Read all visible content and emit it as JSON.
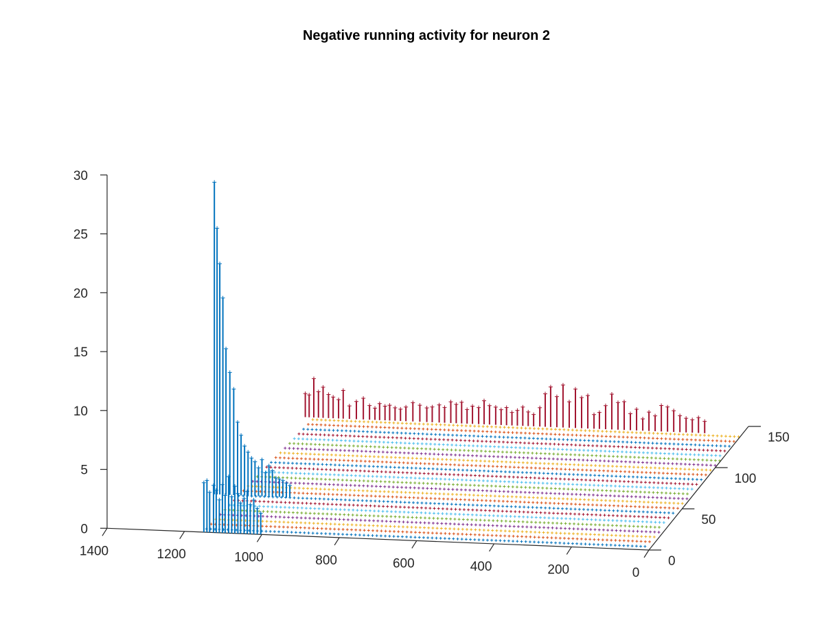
{
  "chart_data": {
    "type": "stem3",
    "title": "Negative running activity for neuron 2",
    "xlabel": "",
    "ylabel": "",
    "zlabel": "",
    "x_range": [
      0,
      1400
    ],
    "y_range": [
      0,
      150
    ],
    "z_range": [
      0,
      30
    ],
    "x_ticks": [
      "0",
      "200",
      "400",
      "600",
      "800",
      "1000",
      "1200",
      "1400"
    ],
    "y_ticks": [
      "0",
      "50",
      "100",
      "150"
    ],
    "z_ticks": [
      "0",
      "5",
      "10",
      "15",
      "20",
      "25",
      "30"
    ],
    "grid": false,
    "colors": [
      "#0072BD",
      "#D95319",
      "#EDB120",
      "#7E2F8E",
      "#77AC30",
      "#4DBEEE",
      "#A2142F"
    ],
    "series": [
      {
        "color": "#0072BD",
        "y": 0,
        "points": [
          {
            "x": 1150,
            "z": 4.2
          },
          {
            "x": 1142,
            "z": 4.4
          },
          {
            "x": 1135,
            "z": 3.4
          },
          {
            "x": 1125,
            "z": 4.0
          },
          {
            "x": 1118,
            "z": 3.6
          },
          {
            "x": 1110,
            "z": 2.8
          },
          {
            "x": 1102,
            "z": 4.1
          },
          {
            "x": 1095,
            "z": 3.2
          },
          {
            "x": 1086,
            "z": 4.8
          },
          {
            "x": 1078,
            "z": 3.1
          },
          {
            "x": 1070,
            "z": 4.0
          },
          {
            "x": 1062,
            "z": 3.4
          },
          {
            "x": 1055,
            "z": 2.6
          },
          {
            "x": 1046,
            "z": 3.0
          },
          {
            "x": 1038,
            "z": 3.6
          },
          {
            "x": 1030,
            "z": 2.5
          },
          {
            "x": 1021,
            "z": 2.9
          },
          {
            "x": 1012,
            "z": 2.2
          },
          {
            "x": 1003,
            "z": 1.8
          }
        ]
      },
      {
        "color": "#0072BD",
        "y": 45,
        "points": [
          {
            "x": 1200,
            "z": 26.5
          },
          {
            "x": 1193,
            "z": 22.6
          },
          {
            "x": 1186,
            "z": 19.6
          },
          {
            "x": 1178,
            "z": 16.7
          },
          {
            "x": 1170,
            "z": 12.4
          },
          {
            "x": 1160,
            "z": 10.4
          },
          {
            "x": 1150,
            "z": 9.0
          },
          {
            "x": 1140,
            "z": 6.2
          },
          {
            "x": 1131,
            "z": 5.1
          },
          {
            "x": 1122,
            "z": 4.2
          },
          {
            "x": 1113,
            "z": 3.7
          },
          {
            "x": 1104,
            "z": 3.2
          },
          {
            "x": 1095,
            "z": 2.9
          },
          {
            "x": 1086,
            "z": 2.4
          },
          {
            "x": 1077,
            "z": 3.1
          },
          {
            "x": 1068,
            "z": 2.0
          },
          {
            "x": 1059,
            "z": 2.6
          },
          {
            "x": 1050,
            "z": 2.2
          },
          {
            "x": 1041,
            "z": 1.6
          },
          {
            "x": 1032,
            "z": 1.5
          },
          {
            "x": 1023,
            "z": 1.4
          },
          {
            "x": 1014,
            "z": 1.2
          },
          {
            "x": 1005,
            "z": 1.0
          }
        ]
      },
      {
        "color": "#A2142F",
        "y": 140,
        "points": [
          {
            "x": 1128,
            "z": 2.0
          },
          {
            "x": 1118,
            "z": 1.9
          },
          {
            "x": 1106,
            "z": 3.3
          },
          {
            "x": 1094,
            "z": 2.2
          },
          {
            "x": 1082,
            "z": 2.6
          },
          {
            "x": 1068,
            "z": 2.0
          },
          {
            "x": 1056,
            "z": 1.8
          },
          {
            "x": 1042,
            "z": 1.6
          },
          {
            "x": 1030,
            "z": 2.4
          },
          {
            "x": 1014,
            "z": 1.1
          },
          {
            "x": 996,
            "z": 1.5
          },
          {
            "x": 978,
            "z": 1.8
          },
          {
            "x": 962,
            "z": 1.2
          },
          {
            "x": 948,
            "z": 1.0
          },
          {
            "x": 936,
            "z": 1.4
          },
          {
            "x": 922,
            "z": 1.2
          },
          {
            "x": 910,
            "z": 1.3
          },
          {
            "x": 896,
            "z": 1.1
          },
          {
            "x": 882,
            "z": 1.0
          },
          {
            "x": 868,
            "z": 1.2
          },
          {
            "x": 850,
            "z": 1.6
          },
          {
            "x": 832,
            "z": 1.4
          },
          {
            "x": 814,
            "z": 1.2
          },
          {
            "x": 800,
            "z": 1.3
          },
          {
            "x": 782,
            "z": 1.5
          },
          {
            "x": 768,
            "z": 1.3
          },
          {
            "x": 752,
            "z": 1.8
          },
          {
            "x": 738,
            "z": 1.6
          },
          {
            "x": 724,
            "z": 1.8
          },
          {
            "x": 710,
            "z": 1.2
          },
          {
            "x": 696,
            "z": 1.5
          },
          {
            "x": 680,
            "z": 1.4
          },
          {
            "x": 666,
            "z": 2.0
          },
          {
            "x": 652,
            "z": 1.6
          },
          {
            "x": 636,
            "z": 1.5
          },
          {
            "x": 622,
            "z": 1.3
          },
          {
            "x": 608,
            "z": 1.5
          },
          {
            "x": 594,
            "z": 1.1
          },
          {
            "x": 580,
            "z": 1.3
          },
          {
            "x": 566,
            "z": 1.6
          },
          {
            "x": 552,
            "z": 1.2
          },
          {
            "x": 538,
            "z": 1.0
          },
          {
            "x": 522,
            "z": 1.6
          },
          {
            "x": 508,
            "z": 2.8
          },
          {
            "x": 494,
            "z": 3.4
          },
          {
            "x": 478,
            "z": 2.6
          },
          {
            "x": 462,
            "z": 3.6
          },
          {
            "x": 446,
            "z": 2.2
          },
          {
            "x": 430,
            "z": 3.3
          },
          {
            "x": 414,
            "z": 2.6
          },
          {
            "x": 398,
            "z": 2.8
          },
          {
            "x": 382,
            "z": 1.2
          },
          {
            "x": 368,
            "z": 1.4
          },
          {
            "x": 352,
            "z": 2.0
          },
          {
            "x": 336,
            "z": 3.0
          },
          {
            "x": 320,
            "z": 2.3
          },
          {
            "x": 304,
            "z": 2.4
          },
          {
            "x": 288,
            "z": 1.4
          },
          {
            "x": 272,
            "z": 1.8
          },
          {
            "x": 256,
            "z": 1.0
          },
          {
            "x": 240,
            "z": 1.6
          },
          {
            "x": 224,
            "z": 1.3
          },
          {
            "x": 208,
            "z": 2.2
          },
          {
            "x": 192,
            "z": 2.1
          },
          {
            "x": 176,
            "z": 1.8
          },
          {
            "x": 160,
            "z": 1.4
          },
          {
            "x": 144,
            "z": 1.2
          },
          {
            "x": 128,
            "z": 1.1
          },
          {
            "x": 112,
            "z": 1.3
          },
          {
            "x": 96,
            "z": 1.0
          }
        ]
      }
    ]
  }
}
